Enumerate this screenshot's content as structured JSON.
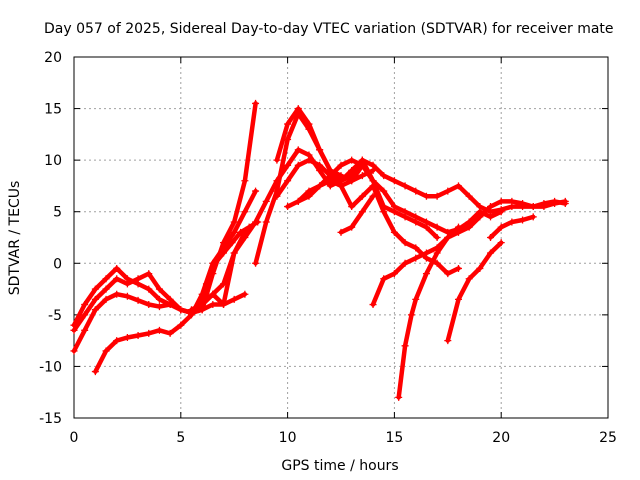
{
  "chart_data": {
    "type": "scatter",
    "title": "Day 057 of 2025, Sidereal Day-to-day VTEC variation (SDTVAR) for receiver mate",
    "xlabel": "GPS time / hours",
    "ylabel": "SDTVAR / TECUs",
    "xlim": [
      0,
      25
    ],
    "ylim": [
      -15,
      20
    ],
    "xticks": [
      "0",
      "5",
      "10",
      "15",
      "20",
      "25"
    ],
    "yticks": [
      "-15",
      "-10",
      "-5",
      "0",
      "5",
      "10",
      "15",
      "20"
    ],
    "grid": true,
    "marker": "plus",
    "series_color": "#ff0000",
    "series": [
      {
        "x": [
          0.0,
          0.5,
          1.0,
          1.5,
          2.0,
          2.5,
          3.0,
          3.5,
          4.0,
          4.5,
          5.0,
          5.5,
          6.0,
          6.5,
          7.0,
          7.5,
          8.0,
          8.5
        ],
        "y": [
          -6.5,
          -5.0,
          -3.5,
          -2.5,
          -1.5,
          -2.0,
          -1.5,
          -1.0,
          -2.5,
          -3.5,
          -4.5,
          -4.8,
          -4.5,
          -1.0,
          2.0,
          4.0,
          8.0,
          15.5
        ]
      },
      {
        "x": [
          0.0,
          0.5,
          1.0,
          1.5,
          2.0,
          2.5,
          3.0,
          3.5,
          4.0,
          4.5,
          5.0,
          5.5,
          6.0,
          6.5,
          7.0,
          7.5,
          8.0
        ],
        "y": [
          -6.0,
          -4.0,
          -2.5,
          -1.5,
          -0.5,
          -1.5,
          -2.0,
          -2.5,
          -3.5,
          -4.0,
          -4.5,
          -4.8,
          -4.0,
          -3.0,
          -2.0,
          1.0,
          3.0
        ]
      },
      {
        "x": [
          0.0,
          0.5,
          1.0,
          1.5,
          2.0,
          2.5,
          3.0,
          3.5,
          4.0,
          4.5,
          5.0,
          5.5,
          6.0,
          6.5,
          7.0,
          7.5,
          8.0
        ],
        "y": [
          -8.5,
          -6.5,
          -4.5,
          -3.5,
          -3.0,
          -3.2,
          -3.6,
          -4.0,
          -4.2,
          -4.0,
          -4.5,
          -4.8,
          -4.5,
          -4.0,
          -4.0,
          -3.5,
          -3.0
        ]
      },
      {
        "x": [
          1.0,
          1.5,
          2.0,
          2.5,
          3.0,
          3.5,
          4.0,
          4.5,
          5.0,
          5.5,
          6.0,
          6.5,
          7.0,
          7.5,
          8.0,
          8.5
        ],
        "y": [
          -10.5,
          -8.5,
          -7.5,
          -7.2,
          -7.0,
          -6.8,
          -6.5,
          -6.8,
          -6.0,
          -5.0,
          -3.0,
          0.0,
          1.5,
          3.0,
          5.0,
          7.0
        ]
      },
      {
        "x": [
          5.5,
          6.0,
          6.5,
          7.0,
          7.5,
          8.0,
          8.5,
          9.0,
          9.5,
          10.0,
          10.5,
          11.0,
          11.5,
          12.0,
          12.5,
          13.0,
          13.5,
          14.0,
          14.5,
          15.0,
          15.5,
          16.0,
          16.5,
          17.0,
          17.5,
          18.0,
          18.5,
          19.0,
          19.5,
          20.0
        ],
        "y": [
          -4.5,
          -4.0,
          -3.0,
          -4.0,
          1.0,
          2.5,
          4.0,
          6.0,
          8.0,
          9.5,
          11.0,
          10.5,
          9.0,
          7.5,
          8.0,
          9.0,
          10.0,
          8.0,
          7.0,
          5.5,
          5.0,
          4.5,
          4.0,
          3.5,
          3.0,
          3.3,
          4.0,
          5.0,
          4.5,
          5.0
        ]
      },
      {
        "x": [
          5.8,
          6.2,
          6.6,
          7.0,
          7.4,
          7.8,
          8.2,
          8.6
        ],
        "y": [
          -4.5,
          -2.0,
          0.0,
          1.0,
          2.0,
          3.0,
          3.5,
          4.0
        ]
      },
      {
        "x": [
          8.5,
          9.0,
          9.5,
          10.0,
          10.5,
          11.0,
          11.5,
          12.0,
          12.5,
          13.0,
          13.5,
          14.0,
          14.5,
          15.0,
          15.5,
          16.0,
          16.5,
          17.0,
          17.5,
          18.0,
          18.5,
          19.0,
          19.5,
          20.0,
          20.5,
          21.0,
          21.5,
          22.0,
          22.5,
          23.0
        ],
        "y": [
          0.0,
          4.0,
          7.0,
          12.0,
          14.5,
          13.0,
          11.0,
          9.0,
          8.0,
          8.5,
          10.0,
          9.5,
          8.5,
          8.0,
          7.5,
          7.0,
          6.5,
          6.5,
          7.0,
          7.5,
          6.5,
          5.5,
          5.0,
          5.2,
          5.5,
          5.5,
          5.5,
          5.8,
          6.0,
          5.8
        ]
      },
      {
        "x": [
          9.5,
          10.0,
          10.5,
          11.0,
          11.5,
          12.0,
          12.5,
          13.0,
          13.5,
          14.0,
          14.5,
          15.0,
          15.5,
          16.0,
          16.5,
          17.0
        ],
        "y": [
          10.0,
          13.5,
          15.0,
          13.5,
          11.0,
          9.0,
          8.5,
          8.0,
          9.5,
          8.0,
          5.5,
          5.0,
          4.5,
          4.0,
          3.5,
          2.5
        ]
      },
      {
        "x": [
          9.5,
          10.0,
          10.5,
          11.0,
          11.5,
          12.0,
          12.5,
          13.0,
          13.5,
          14.0,
          14.5,
          15.0,
          15.5,
          16.0,
          16.5,
          17.0,
          17.5,
          18.0
        ],
        "y": [
          6.5,
          8.0,
          9.5,
          10.0,
          9.5,
          8.5,
          7.5,
          5.5,
          6.5,
          7.5,
          5.0,
          3.0,
          2.0,
          1.5,
          0.5,
          0.0,
          -1.0,
          -0.5
        ]
      },
      {
        "x": [
          10.0,
          10.5,
          11.0,
          11.5,
          12.0,
          12.5,
          13.0,
          13.5
        ],
        "y": [
          5.5,
          6.0,
          6.5,
          7.5,
          8.5,
          9.5,
          10.0,
          9.5
        ]
      },
      {
        "x": [
          10.5,
          11.0,
          11.5,
          12.0,
          12.5,
          13.0,
          13.5,
          14.0
        ],
        "y": [
          6.0,
          7.0,
          7.5,
          8.0,
          7.5,
          8.0,
          8.5,
          9.0
        ]
      },
      {
        "x": [
          12.5,
          13.0,
          13.5,
          14.0
        ],
        "y": [
          3.0,
          3.5,
          5.0,
          6.5
        ]
      },
      {
        "x": [
          14.0,
          14.5,
          15.0,
          15.5,
          16.0,
          16.5,
          17.0,
          17.5,
          18.0,
          18.5,
          19.0,
          19.5,
          20.0,
          20.5,
          21.0,
          21.5,
          22.0,
          22.5,
          23.0
        ],
        "y": [
          -4.0,
          -1.5,
          -1.0,
          0.0,
          0.5,
          1.0,
          1.5,
          2.5,
          3.0,
          3.5,
          4.5,
          5.5,
          6.0,
          6.0,
          5.8,
          5.5,
          5.5,
          5.8,
          6.0
        ]
      },
      {
        "x": [
          15.2,
          15.5,
          15.8,
          16.0,
          16.5,
          17.0,
          17.5,
          18.0
        ],
        "y": [
          -13.0,
          -8.0,
          -5.0,
          -3.5,
          -1.0,
          1.0,
          2.5,
          3.5
        ]
      },
      {
        "x": [
          17.5,
          18.0,
          18.5,
          19.0,
          19.5,
          20.0
        ],
        "y": [
          -7.5,
          -3.5,
          -1.5,
          -0.5,
          1.0,
          2.0
        ]
      },
      {
        "x": [
          19.5,
          20.0,
          20.5,
          21.0,
          21.5
        ],
        "y": [
          2.5,
          3.5,
          4.0,
          4.2,
          4.5
        ]
      }
    ]
  }
}
